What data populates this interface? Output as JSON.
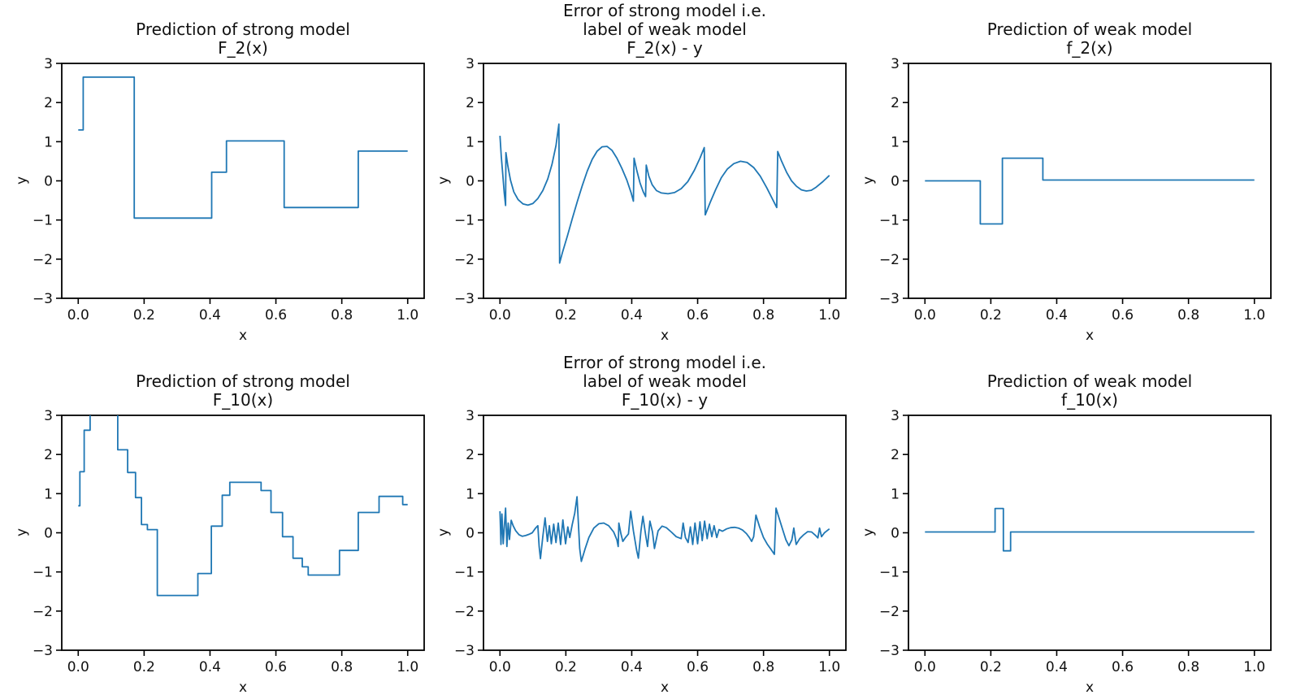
{
  "styles": {
    "line_color": "#1f77b4",
    "axis_color": "#000000",
    "text_color": "#111111",
    "background": "#ffffff"
  },
  "chart_data": [
    {
      "type": "step",
      "title_lines": [
        "Prediction of strong model",
        "F_2(x)"
      ],
      "xlabel": "x",
      "ylabel": "y",
      "xlim": [
        -0.05,
        1.05
      ],
      "ylim": [
        -3,
        3
      ],
      "grid": false,
      "legend": null,
      "xticks": {
        "values": [
          0.0,
          0.2,
          0.4,
          0.6,
          0.8,
          1.0
        ],
        "labels": [
          "0.0",
          "0.2",
          "0.4",
          "0.6",
          "0.8",
          "1.0"
        ]
      },
      "yticks": {
        "values": [
          3,
          2,
          1,
          0,
          -1,
          -2,
          -3
        ],
        "labels": [
          "3",
          "2",
          "1",
          "0",
          "−1",
          "−2",
          "−3"
        ]
      },
      "steps": {
        "breaks": [
          0.0,
          0.015,
          0.17,
          0.405,
          0.45,
          0.625,
          0.85,
          1.0
        ],
        "values": [
          1.3,
          2.65,
          -0.95,
          0.22,
          1.02,
          -0.68,
          0.76
        ]
      }
    },
    {
      "type": "line",
      "title_lines": [
        "Error of strong model i.e.",
        "label of weak model",
        "F_2(x) - y"
      ],
      "xlabel": "x",
      "ylabel": "y",
      "xlim": [
        -0.05,
        1.05
      ],
      "ylim": [
        -3,
        3
      ],
      "grid": false,
      "legend": null,
      "xticks": {
        "values": [
          0.0,
          0.2,
          0.4,
          0.6,
          0.8,
          1.0
        ],
        "labels": [
          "0.0",
          "0.2",
          "0.4",
          "0.6",
          "0.8",
          "1.0"
        ]
      },
      "yticks": {
        "values": [
          3,
          2,
          1,
          0,
          -1,
          -2,
          -3
        ],
        "labels": [
          "3",
          "2",
          "1",
          "0",
          "−1",
          "−2",
          "−3"
        ]
      },
      "points": [
        [
          0.0,
          1.15
        ],
        [
          0.004,
          0.62
        ],
        [
          0.009,
          0.12
        ],
        [
          0.013,
          -0.3
        ],
        [
          0.017,
          -0.63
        ],
        [
          0.018,
          0.72
        ],
        [
          0.024,
          0.38
        ],
        [
          0.032,
          0.02
        ],
        [
          0.042,
          -0.28
        ],
        [
          0.055,
          -0.48
        ],
        [
          0.07,
          -0.59
        ],
        [
          0.085,
          -0.62
        ],
        [
          0.1,
          -0.58
        ],
        [
          0.115,
          -0.45
        ],
        [
          0.13,
          -0.25
        ],
        [
          0.145,
          0.05
        ],
        [
          0.158,
          0.42
        ],
        [
          0.17,
          0.9
        ],
        [
          0.179,
          1.45
        ],
        [
          0.181,
          -2.1
        ],
        [
          0.19,
          -1.82
        ],
        [
          0.205,
          -1.4
        ],
        [
          0.22,
          -0.95
        ],
        [
          0.235,
          -0.52
        ],
        [
          0.25,
          -0.12
        ],
        [
          0.265,
          0.25
        ],
        [
          0.28,
          0.55
        ],
        [
          0.295,
          0.76
        ],
        [
          0.31,
          0.87
        ],
        [
          0.325,
          0.88
        ],
        [
          0.34,
          0.78
        ],
        [
          0.355,
          0.58
        ],
        [
          0.37,
          0.32
        ],
        [
          0.385,
          0.02
        ],
        [
          0.398,
          -0.3
        ],
        [
          0.405,
          -0.52
        ],
        [
          0.407,
          0.58
        ],
        [
          0.415,
          0.28
        ],
        [
          0.425,
          -0.05
        ],
        [
          0.435,
          -0.28
        ],
        [
          0.442,
          -0.4
        ],
        [
          0.444,
          0.4
        ],
        [
          0.452,
          0.12
        ],
        [
          0.462,
          -0.1
        ],
        [
          0.475,
          -0.25
        ],
        [
          0.49,
          -0.31
        ],
        [
          0.51,
          -0.33
        ],
        [
          0.53,
          -0.3
        ],
        [
          0.55,
          -0.2
        ],
        [
          0.57,
          -0.02
        ],
        [
          0.59,
          0.27
        ],
        [
          0.607,
          0.58
        ],
        [
          0.62,
          0.85
        ],
        [
          0.623,
          -0.87
        ],
        [
          0.638,
          -0.55
        ],
        [
          0.655,
          -0.22
        ],
        [
          0.672,
          0.08
        ],
        [
          0.69,
          0.3
        ],
        [
          0.71,
          0.44
        ],
        [
          0.73,
          0.5
        ],
        [
          0.75,
          0.47
        ],
        [
          0.77,
          0.34
        ],
        [
          0.79,
          0.12
        ],
        [
          0.81,
          -0.18
        ],
        [
          0.828,
          -0.48
        ],
        [
          0.84,
          -0.68
        ],
        [
          0.843,
          0.75
        ],
        [
          0.855,
          0.5
        ],
        [
          0.87,
          0.22
        ],
        [
          0.885,
          0.0
        ],
        [
          0.9,
          -0.14
        ],
        [
          0.915,
          -0.23
        ],
        [
          0.93,
          -0.26
        ],
        [
          0.945,
          -0.24
        ],
        [
          0.96,
          -0.16
        ],
        [
          0.98,
          -0.02
        ],
        [
          1.0,
          0.14
        ]
      ]
    },
    {
      "type": "step",
      "title_lines": [
        "Prediction of weak model",
        "f_2(x)"
      ],
      "xlabel": "x",
      "ylabel": "y",
      "xlim": [
        -0.05,
        1.05
      ],
      "ylim": [
        -3,
        3
      ],
      "grid": false,
      "legend": null,
      "xticks": {
        "values": [
          0.0,
          0.2,
          0.4,
          0.6,
          0.8,
          1.0
        ],
        "labels": [
          "0.0",
          "0.2",
          "0.4",
          "0.6",
          "0.8",
          "1.0"
        ]
      },
      "yticks": {
        "values": [
          3,
          2,
          1,
          0,
          -1,
          -2,
          -3
        ],
        "labels": [
          "3",
          "2",
          "1",
          "0",
          "−1",
          "−2",
          "−3"
        ]
      },
      "steps": {
        "breaks": [
          0.0,
          0.168,
          0.235,
          0.358,
          1.0
        ],
        "values": [
          0.0,
          -1.1,
          0.58,
          0.02
        ]
      }
    },
    {
      "type": "step",
      "title_lines": [
        "Prediction of strong model",
        "F_10(x)"
      ],
      "xlabel": "x",
      "ylabel": "y",
      "xlim": [
        -0.05,
        1.05
      ],
      "ylim": [
        -3,
        3
      ],
      "grid": false,
      "legend": null,
      "xticks": {
        "values": [
          0.0,
          0.2,
          0.4,
          0.6,
          0.8,
          1.0
        ],
        "labels": [
          "0.0",
          "0.2",
          "0.4",
          "0.6",
          "0.8",
          "1.0"
        ]
      },
      "yticks": {
        "values": [
          3,
          2,
          1,
          0,
          -1,
          -2,
          -3
        ],
        "labels": [
          "3",
          "2",
          "1",
          "0",
          "−1",
          "−2",
          "−3"
        ]
      },
      "steps": {
        "breaks": [
          0.0,
          0.005,
          0.018,
          0.036,
          0.12,
          0.15,
          0.174,
          0.192,
          0.21,
          0.24,
          0.363,
          0.404,
          0.437,
          0.46,
          0.555,
          0.585,
          0.62,
          0.652,
          0.68,
          0.698,
          0.793,
          0.85,
          0.913,
          0.985,
          1.0
        ],
        "values": [
          0.69,
          1.56,
          2.62,
          3.35,
          2.12,
          1.54,
          0.9,
          0.21,
          0.08,
          -1.6,
          -1.04,
          0.17,
          0.96,
          1.29,
          1.08,
          0.52,
          -0.1,
          -0.65,
          -0.87,
          -1.08,
          -0.45,
          0.52,
          0.93,
          0.72
        ]
      }
    },
    {
      "type": "line",
      "title_lines": [
        "Error of strong model i.e.",
        "label of weak model",
        "F_10(x) - y"
      ],
      "xlabel": "x",
      "ylabel": "y",
      "xlim": [
        -0.05,
        1.05
      ],
      "ylim": [
        -3,
        3
      ],
      "grid": false,
      "legend": null,
      "xticks": {
        "values": [
          0.0,
          0.2,
          0.4,
          0.6,
          0.8,
          1.0
        ],
        "labels": [
          "0.0",
          "0.2",
          "0.4",
          "0.6",
          "0.8",
          "1.0"
        ]
      },
      "yticks": {
        "values": [
          3,
          2,
          1,
          0,
          -1,
          -2,
          -3
        ],
        "labels": [
          "3",
          "2",
          "1",
          "0",
          "−1",
          "−2",
          "−3"
        ]
      },
      "points": [
        [
          0.0,
          0.55
        ],
        [
          0.003,
          -0.3
        ],
        [
          0.006,
          0.48
        ],
        [
          0.01,
          -0.28
        ],
        [
          0.013,
          0.1
        ],
        [
          0.017,
          0.63
        ],
        [
          0.021,
          -0.35
        ],
        [
          0.025,
          0.25
        ],
        [
          0.029,
          -0.17
        ],
        [
          0.034,
          0.32
        ],
        [
          0.04,
          0.18
        ],
        [
          0.048,
          0.05
        ],
        [
          0.058,
          -0.05
        ],
        [
          0.068,
          -0.09
        ],
        [
          0.078,
          -0.07
        ],
        [
          0.088,
          -0.04
        ],
        [
          0.098,
          0.0
        ],
        [
          0.108,
          0.12
        ],
        [
          0.115,
          0.18
        ],
        [
          0.119,
          -0.35
        ],
        [
          0.123,
          -0.66
        ],
        [
          0.13,
          -0.1
        ],
        [
          0.137,
          0.38
        ],
        [
          0.144,
          -0.22
        ],
        [
          0.15,
          0.18
        ],
        [
          0.156,
          -0.28
        ],
        [
          0.163,
          0.22
        ],
        [
          0.17,
          -0.25
        ],
        [
          0.177,
          0.25
        ],
        [
          0.184,
          -0.3
        ],
        [
          0.191,
          0.33
        ],
        [
          0.199,
          -0.28
        ],
        [
          0.206,
          0.15
        ],
        [
          0.212,
          -0.12
        ],
        [
          0.219,
          0.2
        ],
        [
          0.227,
          0.5
        ],
        [
          0.234,
          0.92
        ],
        [
          0.242,
          -0.4
        ],
        [
          0.247,
          -0.73
        ],
        [
          0.258,
          -0.42
        ],
        [
          0.27,
          -0.12
        ],
        [
          0.285,
          0.12
        ],
        [
          0.3,
          0.23
        ],
        [
          0.315,
          0.25
        ],
        [
          0.33,
          0.18
        ],
        [
          0.345,
          0.02
        ],
        [
          0.355,
          -0.18
        ],
        [
          0.359,
          -0.35
        ],
        [
          0.361,
          0.25
        ],
        [
          0.367,
          -0.02
        ],
        [
          0.373,
          -0.22
        ],
        [
          0.381,
          -0.12
        ],
        [
          0.39,
          -0.03
        ],
        [
          0.397,
          0.55
        ],
        [
          0.405,
          0.05
        ],
        [
          0.415,
          -0.45
        ],
        [
          0.42,
          -0.65
        ],
        [
          0.428,
          0.05
        ],
        [
          0.434,
          0.42
        ],
        [
          0.442,
          -0.05
        ],
        [
          0.448,
          -0.35
        ],
        [
          0.455,
          0.3
        ],
        [
          0.463,
          0.02
        ],
        [
          0.469,
          -0.4
        ],
        [
          0.48,
          0.05
        ],
        [
          0.492,
          0.17
        ],
        [
          0.505,
          0.13
        ],
        [
          0.52,
          0.02
        ],
        [
          0.535,
          -0.1
        ],
        [
          0.55,
          -0.15
        ],
        [
          0.556,
          0.25
        ],
        [
          0.563,
          -0.12
        ],
        [
          0.571,
          -0.25
        ],
        [
          0.578,
          0.15
        ],
        [
          0.585,
          -0.3
        ],
        [
          0.592,
          0.25
        ],
        [
          0.6,
          -0.28
        ],
        [
          0.607,
          0.28
        ],
        [
          0.614,
          -0.2
        ],
        [
          0.621,
          0.3
        ],
        [
          0.629,
          -0.15
        ],
        [
          0.636,
          0.22
        ],
        [
          0.643,
          -0.1
        ],
        [
          0.65,
          0.18
        ],
        [
          0.658,
          -0.12
        ],
        [
          0.665,
          0.08
        ],
        [
          0.675,
          0.04
        ],
        [
          0.688,
          0.1
        ],
        [
          0.7,
          0.13
        ],
        [
          0.712,
          0.14
        ],
        [
          0.724,
          0.12
        ],
        [
          0.736,
          0.07
        ],
        [
          0.748,
          -0.02
        ],
        [
          0.757,
          -0.12
        ],
        [
          0.764,
          -0.22
        ],
        [
          0.77,
          -0.1
        ],
        [
          0.777,
          0.45
        ],
        [
          0.788,
          0.15
        ],
        [
          0.8,
          -0.12
        ],
        [
          0.812,
          -0.3
        ],
        [
          0.824,
          -0.44
        ],
        [
          0.833,
          -0.55
        ],
        [
          0.838,
          0.63
        ],
        [
          0.847,
          0.38
        ],
        [
          0.858,
          0.08
        ],
        [
          0.868,
          -0.18
        ],
        [
          0.877,
          -0.33
        ],
        [
          0.886,
          -0.18
        ],
        [
          0.892,
          0.12
        ],
        [
          0.899,
          -0.3
        ],
        [
          0.91,
          -0.15
        ],
        [
          0.922,
          -0.05
        ],
        [
          0.934,
          0.03
        ],
        [
          0.946,
          0.02
        ],
        [
          0.957,
          -0.06
        ],
        [
          0.965,
          -0.13
        ],
        [
          0.97,
          0.12
        ],
        [
          0.976,
          -0.1
        ],
        [
          0.985,
          0.0
        ],
        [
          1.0,
          0.1
        ]
      ]
    },
    {
      "type": "step",
      "title_lines": [
        "Prediction of weak model",
        "f_10(x)"
      ],
      "xlabel": "x",
      "ylabel": "y",
      "xlim": [
        -0.05,
        1.05
      ],
      "ylim": [
        -3,
        3
      ],
      "grid": false,
      "legend": null,
      "xticks": {
        "values": [
          0.0,
          0.2,
          0.4,
          0.6,
          0.8,
          1.0
        ],
        "labels": [
          "0.0",
          "0.2",
          "0.4",
          "0.6",
          "0.8",
          "1.0"
        ]
      },
      "yticks": {
        "values": [
          3,
          2,
          1,
          0,
          -1,
          -2,
          -3
        ],
        "labels": [
          "3",
          "2",
          "1",
          "0",
          "−1",
          "−2",
          "−3"
        ]
      },
      "steps": {
        "breaks": [
          0.0,
          0.213,
          0.238,
          0.26,
          1.0
        ],
        "values": [
          0.02,
          0.62,
          -0.46,
          0.02
        ]
      }
    }
  ]
}
